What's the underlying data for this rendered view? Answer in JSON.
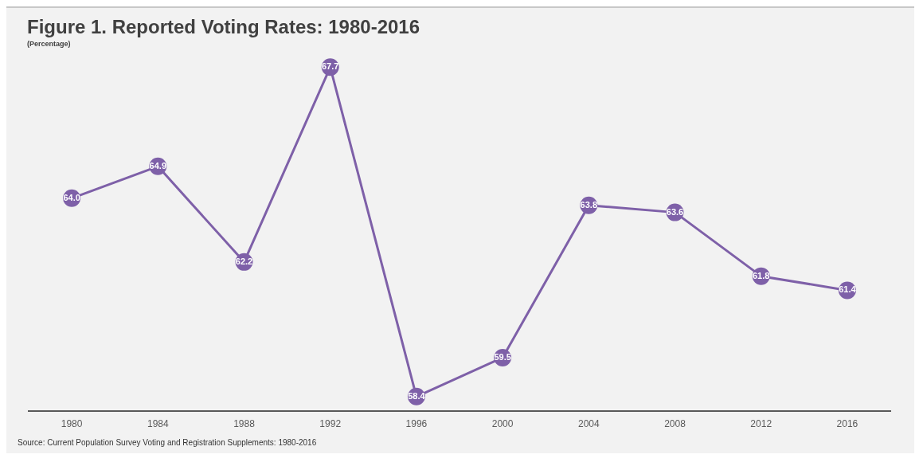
{
  "chart_data": {
    "type": "line",
    "title": "Figure 1. Reported Voting Rates: 1980-2016",
    "subtitle": "(Percentage)",
    "categories": [
      "1980",
      "1984",
      "1988",
      "1992",
      "1996",
      "2000",
      "2004",
      "2008",
      "2012",
      "2016"
    ],
    "series": [
      {
        "color": "#7e60a8",
        "values": [
          64.0,
          64.9,
          62.2,
          67.7,
          58.4,
          59.5,
          63.8,
          63.6,
          61.8,
          61.4
        ],
        "value_labels": [
          "64.0",
          "64.9",
          "62.2",
          "67.7",
          "58.4",
          "59.5",
          "63.8",
          "63.6",
          "61.8",
          "61.4"
        ]
      }
    ],
    "tick_labels": "x",
    "grid": false,
    "legend": false,
    "marker": "circle",
    "line_style": "solid",
    "annotations": [
      "Source: Current Population Survey Voting and Registration Supplements: 1980-2016"
    ]
  }
}
